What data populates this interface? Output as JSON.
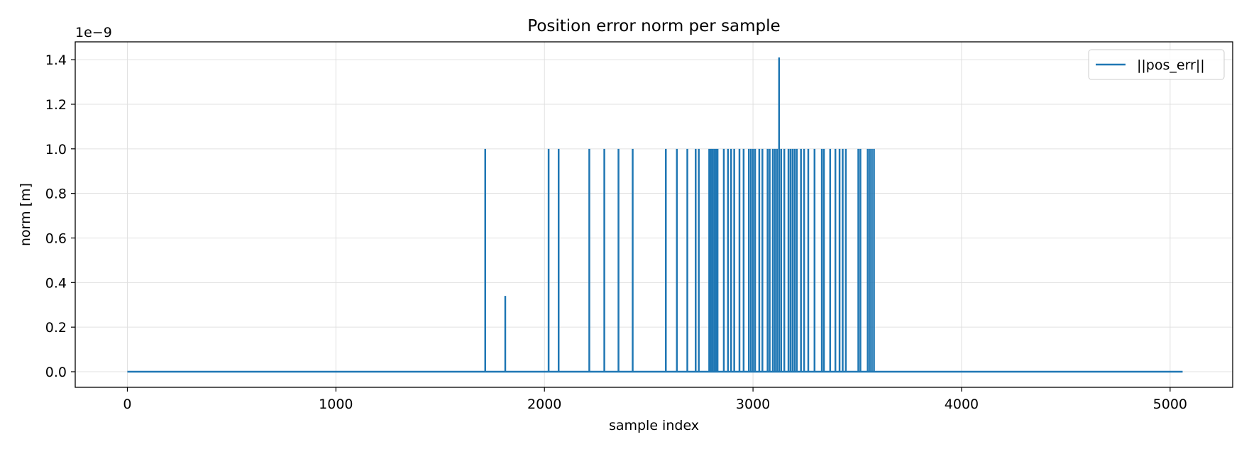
{
  "chart_data": {
    "type": "line",
    "title": "Position error norm per sample",
    "xlabel": "sample index",
    "ylabel": "norm [m]",
    "y_offset_label": "1e−9",
    "y_scale_note": "values in units of 1e-9 m",
    "xlim": [
      -250,
      5300
    ],
    "ylim": [
      -0.07,
      1.48
    ],
    "x_ticks": [
      0,
      1000,
      2000,
      3000,
      4000,
      5000
    ],
    "x_tick_labels": [
      "0",
      "1000",
      "2000",
      "3000",
      "4000",
      "5000"
    ],
    "y_ticks": [
      0.0,
      0.2,
      0.4,
      0.6,
      0.8,
      1.0,
      1.2,
      1.4
    ],
    "y_tick_labels": [
      "0.0",
      "0.2",
      "0.4",
      "0.6",
      "0.8",
      "1.0",
      "1.2",
      "1.4"
    ],
    "grid": true,
    "legend_position": "top-right",
    "series": [
      {
        "name": "||pos_err||",
        "color": "#1f77b4",
        "x_range": [
          0,
          5060
        ],
        "baseline": 0.0,
        "spikes": [
          {
            "x": 1716,
            "y": 1.0
          },
          {
            "x": 1812,
            "y": 0.34
          },
          {
            "x": 2020,
            "y": 1.0
          },
          {
            "x": 2068,
            "y": 1.0
          },
          {
            "x": 2215,
            "y": 1.0
          },
          {
            "x": 2287,
            "y": 1.0
          },
          {
            "x": 2355,
            "y": 1.0
          },
          {
            "x": 2423,
            "y": 1.0
          },
          {
            "x": 2582,
            "y": 1.0
          },
          {
            "x": 2635,
            "y": 1.0
          },
          {
            "x": 2685,
            "y": 1.0
          },
          {
            "x": 2725,
            "y": 1.0
          },
          {
            "x": 2740,
            "y": 1.0
          },
          {
            "x": 2790,
            "y": 1.0
          },
          {
            "x": 2798,
            "y": 1.0
          },
          {
            "x": 2806,
            "y": 1.0
          },
          {
            "x": 2814,
            "y": 1.0
          },
          {
            "x": 2822,
            "y": 1.0
          },
          {
            "x": 2830,
            "y": 1.0
          },
          {
            "x": 2860,
            "y": 1.0
          },
          {
            "x": 2880,
            "y": 1.0
          },
          {
            "x": 2895,
            "y": 1.0
          },
          {
            "x": 2910,
            "y": 1.0
          },
          {
            "x": 2935,
            "y": 1.0
          },
          {
            "x": 2955,
            "y": 1.0
          },
          {
            "x": 2980,
            "y": 1.0
          },
          {
            "x": 2990,
            "y": 1.0
          },
          {
            "x": 3000,
            "y": 1.0
          },
          {
            "x": 3010,
            "y": 1.0
          },
          {
            "x": 3030,
            "y": 1.0
          },
          {
            "x": 3045,
            "y": 1.0
          },
          {
            "x": 3070,
            "y": 1.0
          },
          {
            "x": 3080,
            "y": 1.0
          },
          {
            "x": 3095,
            "y": 1.0
          },
          {
            "x": 3105,
            "y": 1.0
          },
          {
            "x": 3115,
            "y": 1.0
          },
          {
            "x": 3125,
            "y": 1.41
          },
          {
            "x": 3135,
            "y": 1.0
          },
          {
            "x": 3150,
            "y": 1.0
          },
          {
            "x": 3170,
            "y": 1.0
          },
          {
            "x": 3180,
            "y": 1.0
          },
          {
            "x": 3190,
            "y": 1.0
          },
          {
            "x": 3200,
            "y": 1.0
          },
          {
            "x": 3210,
            "y": 1.0
          },
          {
            "x": 3230,
            "y": 1.0
          },
          {
            "x": 3245,
            "y": 1.0
          },
          {
            "x": 3265,
            "y": 1.0
          },
          {
            "x": 3295,
            "y": 1.0
          },
          {
            "x": 3330,
            "y": 1.0
          },
          {
            "x": 3340,
            "y": 1.0
          },
          {
            "x": 3370,
            "y": 1.0
          },
          {
            "x": 3395,
            "y": 1.0
          },
          {
            "x": 3415,
            "y": 1.0
          },
          {
            "x": 3430,
            "y": 1.0
          },
          {
            "x": 3445,
            "y": 1.0
          },
          {
            "x": 3505,
            "y": 1.0
          },
          {
            "x": 3515,
            "y": 1.0
          },
          {
            "x": 3550,
            "y": 1.0
          },
          {
            "x": 3560,
            "y": 1.0
          },
          {
            "x": 3570,
            "y": 1.0
          },
          {
            "x": 3580,
            "y": 1.0
          }
        ]
      }
    ]
  }
}
